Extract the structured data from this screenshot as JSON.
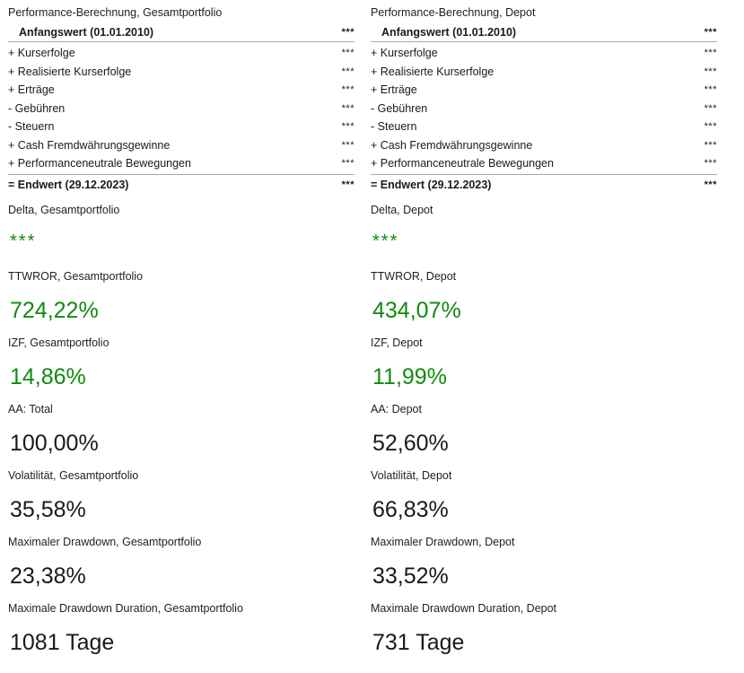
{
  "left": {
    "perf_title": "Performance-Berechnung, Gesamtportfolio",
    "start_row": {
      "label": "Anfangswert (01.01.2010)",
      "value": "***"
    },
    "items": [
      {
        "label": "+ Kurserfolge",
        "value": "***"
      },
      {
        "label": "+ Realisierte Kurserfolge",
        "value": "***"
      },
      {
        "label": "+ Erträge",
        "value": "***"
      },
      {
        "label": "-  Gebühren",
        "value": "***"
      },
      {
        "label": "-  Steuern",
        "value": "***"
      },
      {
        "label": "+ Cash Fremdwährungsgewinne",
        "value": "***"
      },
      {
        "label": "+ Performanceneutrale Bewegungen",
        "value": "***"
      }
    ],
    "end_row": {
      "label": "= Endwert (29.12.2023)",
      "value": "***"
    },
    "delta": {
      "label": "Delta, Gesamtportfolio",
      "value": "***"
    },
    "ttwror": {
      "label": "TTWROR, Gesamtportfolio",
      "value": "724,22%"
    },
    "izf": {
      "label": "IZF, Gesamtportfolio",
      "value": "14,86%"
    },
    "aa": {
      "label": "AA: Total",
      "value": "100,00%"
    },
    "volatility": {
      "label": "Volatilität, Gesamtportfolio",
      "value": "35,58%"
    },
    "max_drawdown": {
      "label": "Maximaler Drawdown, Gesamtportfolio",
      "value": "23,38%"
    },
    "max_drawdown_duration": {
      "label": "Maximale Drawdown Duration, Gesamtportfolio",
      "value": "1081 Tage"
    }
  },
  "right": {
    "perf_title": "Performance-Berechnung, Depot",
    "start_row": {
      "label": "Anfangswert (01.01.2010)",
      "value": "***"
    },
    "items": [
      {
        "label": "+ Kurserfolge",
        "value": "***"
      },
      {
        "label": "+ Realisierte Kurserfolge",
        "value": "***"
      },
      {
        "label": "+ Erträge",
        "value": "***"
      },
      {
        "label": "-  Gebühren",
        "value": "***"
      },
      {
        "label": "-  Steuern",
        "value": "***"
      },
      {
        "label": "+ Cash Fremdwährungsgewinne",
        "value": "***"
      },
      {
        "label": "+ Performanceneutrale Bewegungen",
        "value": "***"
      }
    ],
    "end_row": {
      "label": "= Endwert (29.12.2023)",
      "value": "***"
    },
    "delta": {
      "label": "Delta, Depot",
      "value": "***"
    },
    "ttwror": {
      "label": "TTWROR, Depot",
      "value": "434,07%"
    },
    "izf": {
      "label": "IZF, Depot",
      "value": "11,99%"
    },
    "aa": {
      "label": "AA: Depot",
      "value": "52,60%"
    },
    "volatility": {
      "label": "Volatilität, Depot",
      "value": "66,83%"
    },
    "max_drawdown": {
      "label": "Maximaler Drawdown, Depot",
      "value": "33,52%"
    },
    "max_drawdown_duration": {
      "label": "Maximale Drawdown Duration, Depot",
      "value": "731 Tage"
    }
  },
  "colors": {
    "positive": "#108a10",
    "text": "#1a1a1a",
    "separator": "#a8a8a8"
  }
}
